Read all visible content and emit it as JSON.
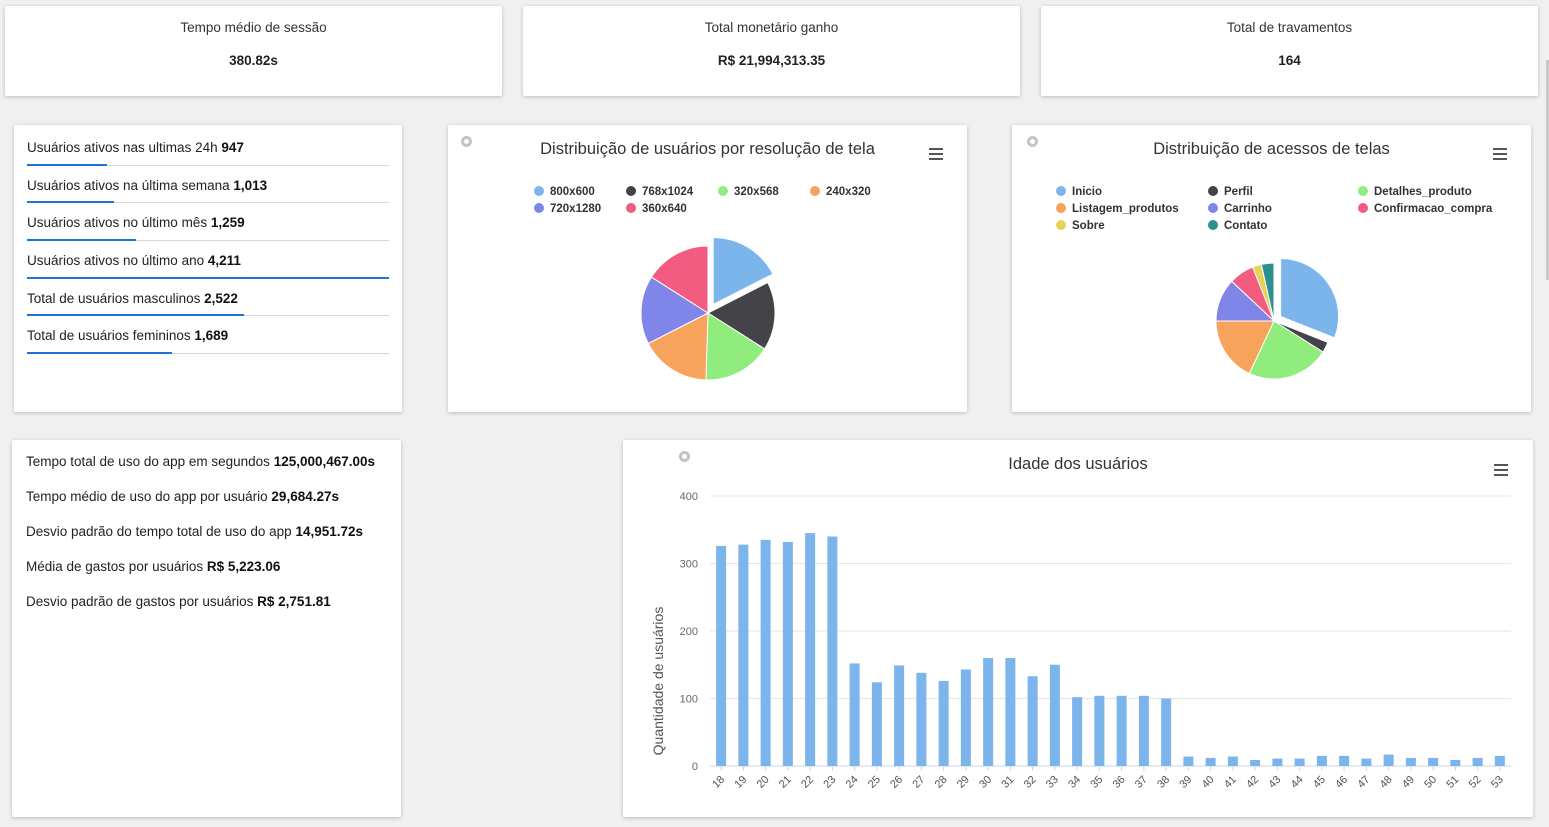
{
  "stats": [
    {
      "title": "Tempo médio de sessão",
      "value": "380.82s"
    },
    {
      "title": "Total monetário ganho",
      "value": "R$ 21,994,313.35"
    },
    {
      "title": "Total de travamentos",
      "value": "164"
    }
  ],
  "metrics": [
    {
      "label": "Usuários ativos nas ultimas 24h",
      "value": "947",
      "fill_pct": 22
    },
    {
      "label": "Usuários ativos na última semana",
      "value": "1,013",
      "fill_pct": 24
    },
    {
      "label": "Usuários ativos no último mês",
      "value": "1,259",
      "fill_pct": 30
    },
    {
      "label": "Usuários ativos no último ano",
      "value": "4,211",
      "fill_pct": 100
    },
    {
      "label": "Total de usuários masculinos",
      "value": "2,522",
      "fill_pct": 60
    },
    {
      "label": "Total de usuários femininos",
      "value": "1,689",
      "fill_pct": 40
    }
  ],
  "usage_stats": [
    {
      "label": "Tempo total de uso do app em segundos",
      "value": "125,000,467.00s"
    },
    {
      "label": "Tempo médio de uso do app por usuário",
      "value": "29,684.27s"
    },
    {
      "label": "Desvio padrão do tempo total de uso do app",
      "value": "14,951.72s"
    },
    {
      "label": "Média de gastos por usuários",
      "value": "R$ 5,223.06"
    },
    {
      "label": "Desvio padrão de gastos por usuários",
      "value": "R$ 2,751.81"
    }
  ],
  "icons": {
    "menu": "hamburger-menu-icon",
    "toggle": "radio-toggle-icon"
  },
  "chart_data": [
    {
      "type": "pie",
      "title": "Distribuição de usuários por resolução de tela",
      "legend_position": "top",
      "categories": [
        "800x600",
        "768x1024",
        "320x568",
        "240x320",
        "720x1280",
        "360x640"
      ],
      "values": [
        17.5,
        16.5,
        16.5,
        17,
        16.5,
        16
      ],
      "colors": [
        "#7cb5ec",
        "#434348",
        "#90ed7d",
        "#f7a35c",
        "#8085e9",
        "#f15c80"
      ],
      "sliced": [
        0
      ]
    },
    {
      "type": "pie",
      "title": "Distribuição de acessos de telas",
      "legend_position": "top",
      "categories": [
        "Inicio",
        "Perfil",
        "Detalhes_produto",
        "Listagem_produtos",
        "Carrinho",
        "Confirmacao_compra",
        "Sobre",
        "Contato"
      ],
      "values": [
        31,
        3,
        23,
        18,
        12,
        7,
        2.5,
        3.5
      ],
      "colors": [
        "#7cb5ec",
        "#434348",
        "#90ed7d",
        "#f7a35c",
        "#8085e9",
        "#f15c80",
        "#e4d354",
        "#2b908f"
      ],
      "sliced": [
        0
      ]
    },
    {
      "type": "bar",
      "title": "Idade dos usuários",
      "xlabel": "",
      "ylabel": "Quantidade de usuários",
      "ylim": [
        0,
        400
      ],
      "yticks": [
        "0",
        "100",
        "200",
        "300",
        "400"
      ],
      "grid": true,
      "color": "#7cb5ec",
      "categories": [
        "18",
        "19",
        "20",
        "21",
        "22",
        "23",
        "24",
        "25",
        "26",
        "27",
        "28",
        "29",
        "30",
        "31",
        "32",
        "33",
        "34",
        "35",
        "36",
        "37",
        "38",
        "39",
        "40",
        "41",
        "42",
        "43",
        "44",
        "45",
        "46",
        "47",
        "48",
        "49",
        "50",
        "51",
        "52",
        "53"
      ],
      "values": [
        326,
        328,
        335,
        332,
        345,
        340,
        152,
        124,
        149,
        138,
        126,
        143,
        160,
        160,
        133,
        150,
        102,
        104,
        104,
        104,
        100,
        14,
        12,
        14,
        9,
        11,
        11,
        15,
        15,
        11,
        17,
        12,
        12,
        9,
        12,
        15
      ]
    }
  ]
}
